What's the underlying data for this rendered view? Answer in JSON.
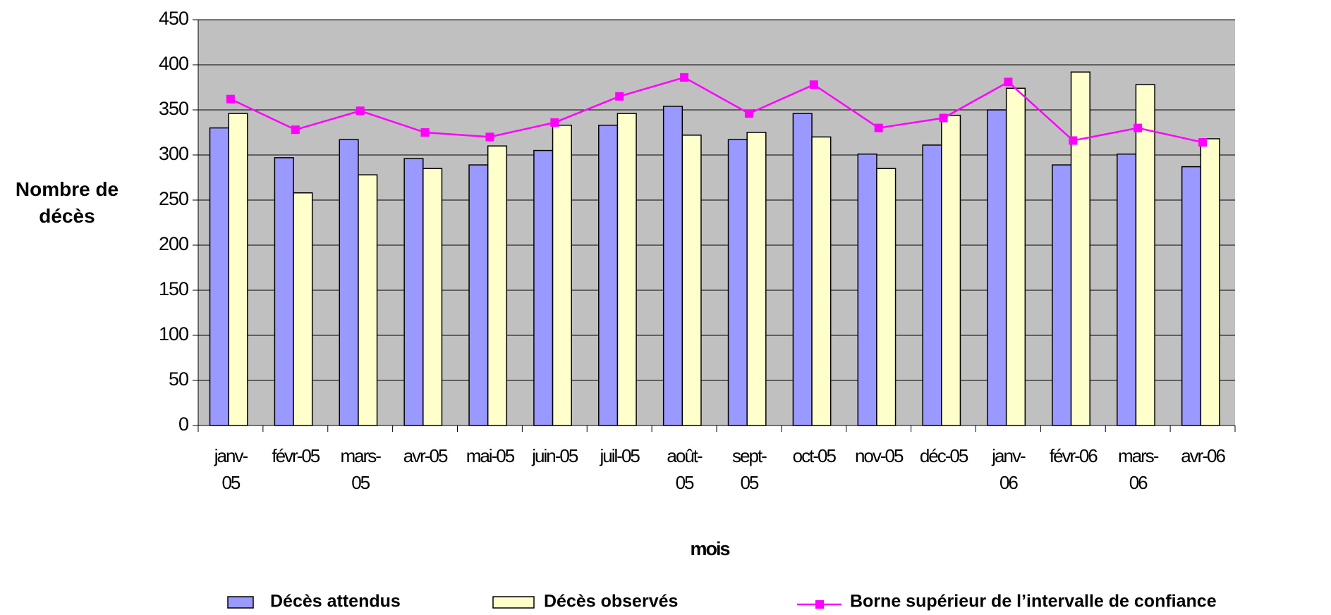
{
  "chart_data": {
    "type": "bar",
    "y_label": "Nombre de décès",
    "x_label": "mois",
    "categories": [
      "janv-05",
      "févr-05",
      "mars-05",
      "avr-05",
      "mai-05",
      "juin-05",
      "juil-05",
      "août-05",
      "sept-05",
      "oct-05",
      "nov-05",
      "déc-05",
      "janv-06",
      "févr-06",
      "mars-06",
      "avr-06"
    ],
    "series": [
      {
        "name": "Décès attendus",
        "color": "#9999ff",
        "type": "bar",
        "values": [
          330,
          297,
          317,
          296,
          289,
          305,
          333,
          354,
          317,
          346,
          301,
          311,
          350,
          289,
          301,
          287
        ]
      },
      {
        "name": "Décès observés",
        "color": "#ffffcc",
        "type": "bar",
        "values": [
          346,
          258,
          278,
          285,
          310,
          333,
          346,
          322,
          325,
          320,
          285,
          344,
          374,
          392,
          378,
          318
        ]
      },
      {
        "name": "Borne supérieur de l’intervalle de confiance",
        "color": "#ff00ff",
        "type": "line",
        "values": [
          362,
          328,
          349,
          325,
          320,
          336,
          365,
          386,
          346,
          378,
          330,
          341,
          381,
          316,
          330,
          314
        ]
      }
    ],
    "ylim": [
      0,
      450
    ],
    "yticks": [
      0,
      50,
      100,
      150,
      200,
      250,
      300,
      350,
      400,
      450
    ],
    "grid": true,
    "plot_background": "#c0c0c0",
    "legend": "bottom"
  }
}
